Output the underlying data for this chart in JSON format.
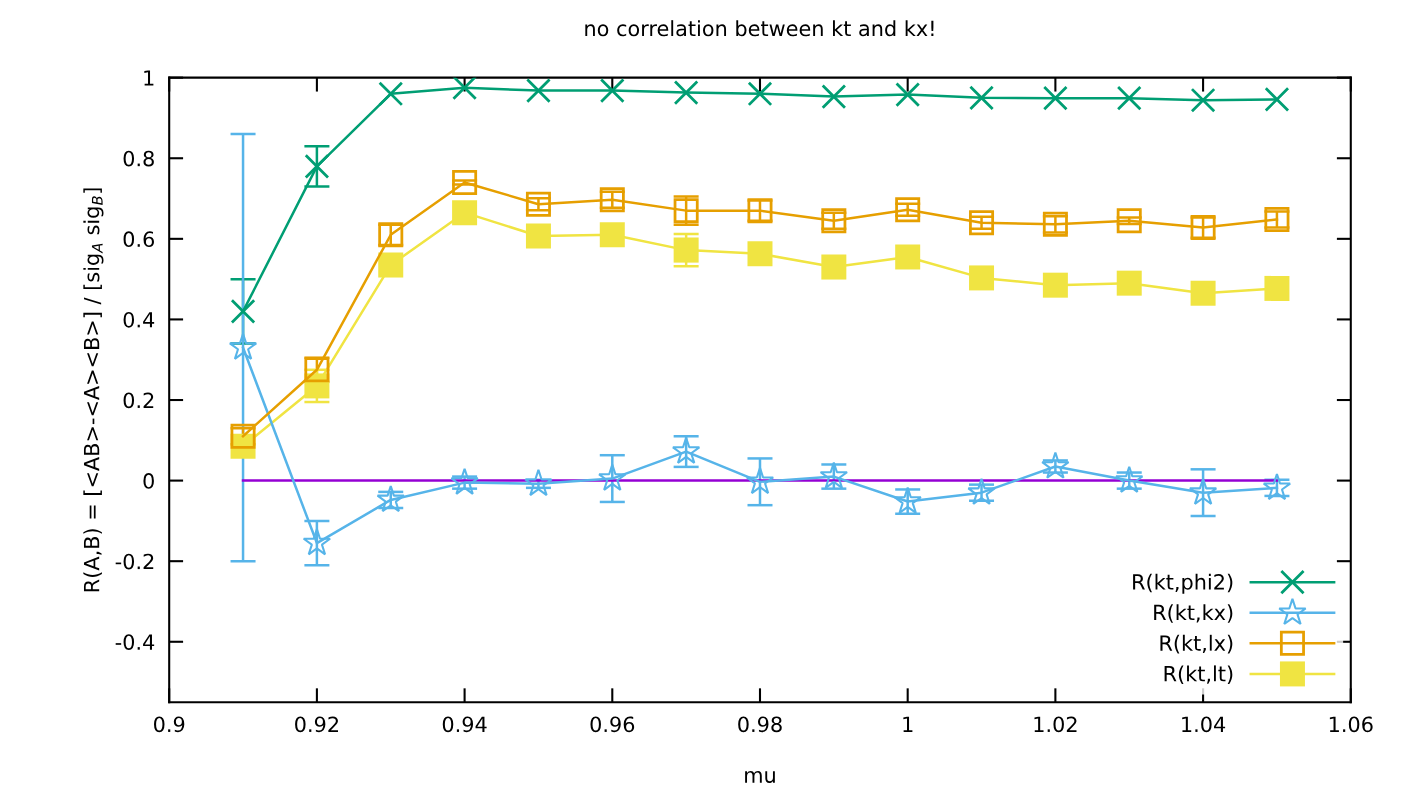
{
  "chart_data": {
    "type": "line",
    "title": "no correlation between kt and kx!",
    "xlabel": "mu",
    "ylabel": "R(A,B) = [<AB>-<A><B>] / [sig$_{A}$ sig$_{B}$]",
    "x": [
      0.91,
      0.92,
      0.93,
      0.94,
      0.95,
      0.96,
      0.97,
      0.98,
      0.99,
      1.0,
      1.01,
      1.02,
      1.03,
      1.04,
      1.05
    ],
    "series": [
      {
        "name": "R(kt,phi2)",
        "color": "#009e73",
        "marker": "cross",
        "values": [
          0.42,
          0.78,
          0.96,
          0.975,
          0.968,
          0.968,
          0.963,
          0.96,
          0.953,
          0.958,
          0.95,
          0.949,
          0.949,
          0.944,
          0.946
        ],
        "errors": [
          0.08,
          0.05,
          null,
          null,
          null,
          null,
          null,
          null,
          null,
          null,
          null,
          null,
          null,
          null,
          null
        ]
      },
      {
        "name": "R(kt,kx)",
        "color": "#56b4e9",
        "marker": "star",
        "values": [
          0.33,
          -0.155,
          -0.048,
          -0.005,
          -0.008,
          0.005,
          0.072,
          -0.003,
          0.01,
          -0.052,
          -0.03,
          0.035,
          0.0,
          -0.03,
          -0.018
        ],
        "errors": [
          [
            -0.2,
            0.86
          ],
          0.055,
          0.02,
          0.015,
          0.01,
          0.058,
          0.038,
          0.058,
          0.03,
          0.03,
          0.02,
          0.015,
          0.02,
          0.058,
          0.02
        ]
      },
      {
        "name": "R(kt,lx)",
        "color": "#e69f00",
        "marker": "square-open",
        "values": [
          0.11,
          0.275,
          0.61,
          0.74,
          0.686,
          0.697,
          0.67,
          0.67,
          0.645,
          0.672,
          0.64,
          0.636,
          0.645,
          0.628,
          0.648
        ],
        "errors": [
          0.02,
          0.03,
          0.025,
          0.005,
          0.015,
          0.02,
          0.035,
          0.025,
          0.02,
          0.015,
          0.015,
          0.02,
          0.008,
          0.025,
          0.02
        ]
      },
      {
        "name": "R(kt,lt)",
        "color": "#f0e442",
        "marker": "square",
        "values": [
          0.085,
          0.235,
          0.535,
          0.665,
          0.607,
          0.61,
          0.572,
          0.563,
          0.53,
          0.555,
          0.503,
          0.485,
          0.49,
          0.465,
          0.477
        ],
        "errors": [
          null,
          0.04,
          null,
          null,
          null,
          null,
          0.04,
          null,
          null,
          null,
          null,
          null,
          null,
          null,
          null
        ]
      },
      {
        "color": "#9400d3",
        "marker": "none",
        "values": [
          0,
          0,
          0,
          0,
          0,
          0,
          0,
          0,
          0,
          0,
          0,
          0,
          0,
          0,
          0
        ]
      }
    ],
    "xlim": [
      0.9,
      1.06
    ],
    "xticks": [
      0.9,
      0.92,
      0.94,
      0.96,
      0.98,
      1,
      1.02,
      1.04,
      1.06
    ],
    "ylim": [
      -0.55,
      1
    ],
    "yticks": [
      -0.4,
      -0.2,
      0,
      0.2,
      0.4,
      0.6,
      0.8,
      1
    ],
    "grid": false,
    "legend": "bottom right"
  }
}
